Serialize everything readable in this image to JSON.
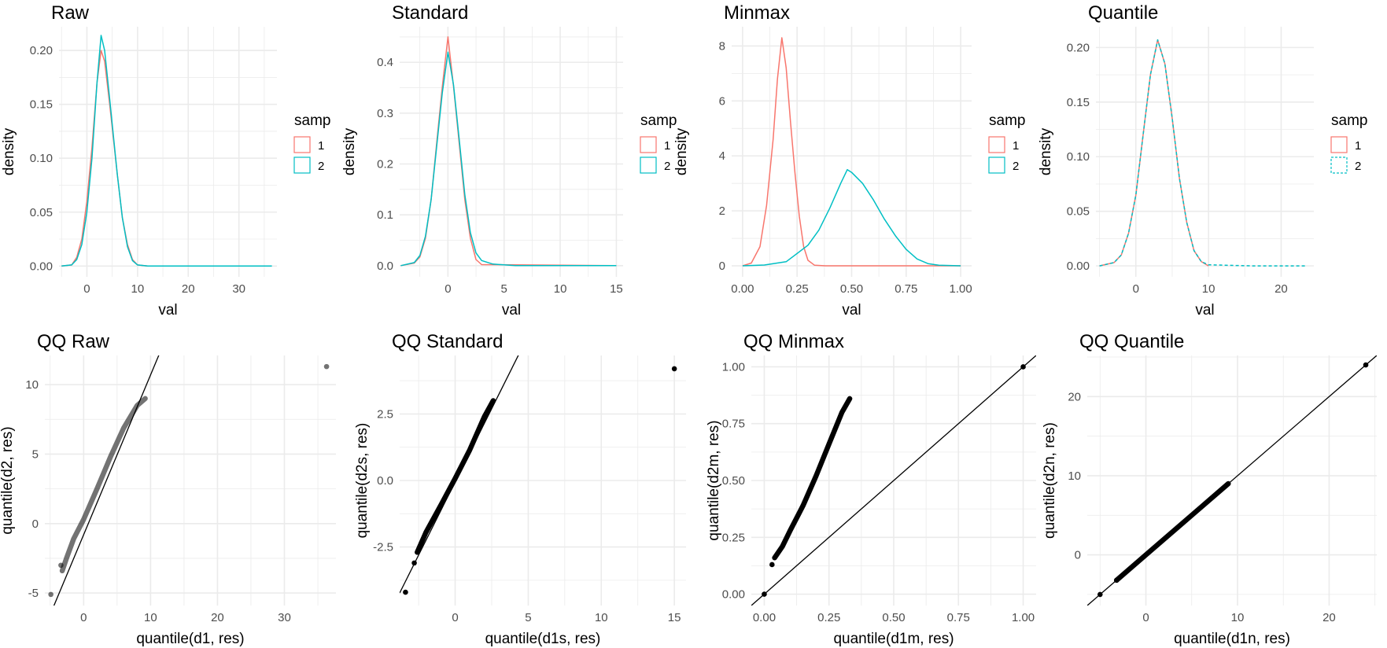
{
  "colors": {
    "samp1": "#F8766D",
    "samp2": "#00BFC4",
    "grid": "#EBEBEB",
    "text": "#4D4D4D",
    "points": "#000000"
  },
  "chart_data": [
    {
      "type": "line",
      "title": "Raw",
      "xlabel": "val",
      "ylabel": "density",
      "xlim": [
        -5.5,
        37.5
      ],
      "ylim": [
        -0.01,
        0.222
      ],
      "xticks": [
        0,
        10,
        20,
        30
      ],
      "xtick_labels": [
        "0",
        "10",
        "20",
        "30"
      ],
      "yticks": [
        0,
        0.05,
        0.1,
        0.15,
        0.2
      ],
      "ytick_labels": [
        "0.00",
        "0.05",
        "0.10",
        "0.15",
        "0.20"
      ],
      "grid": true,
      "legend": {
        "title": "samp",
        "placement": "right",
        "entries": [
          "1",
          "2"
        ]
      },
      "series": [
        {
          "name": "1",
          "color": "#F8766D",
          "dash": false,
          "x": [
            -5,
            -3,
            -2,
            -1,
            0,
            1,
            2,
            2.8,
            3.5,
            4.5,
            6,
            7,
            8,
            9,
            10,
            12,
            20,
            30,
            36
          ],
          "y": [
            0,
            0.001,
            0.008,
            0.025,
            0.06,
            0.11,
            0.17,
            0.2,
            0.19,
            0.15,
            0.085,
            0.045,
            0.02,
            0.006,
            0.001,
            0,
            0,
            0,
            0
          ]
        },
        {
          "name": "2",
          "color": "#00BFC4",
          "dash": false,
          "x": [
            -5,
            -3,
            -2,
            -1,
            0,
            1,
            2,
            2.8,
            3.5,
            4.5,
            6,
            7,
            8,
            9,
            10,
            12,
            20,
            30,
            36.5
          ],
          "y": [
            0,
            0.001,
            0.006,
            0.02,
            0.05,
            0.1,
            0.17,
            0.214,
            0.2,
            0.155,
            0.085,
            0.045,
            0.018,
            0.005,
            0.001,
            0,
            0,
            0,
            0
          ]
        }
      ]
    },
    {
      "type": "line",
      "title": "Standard",
      "xlabel": "val",
      "ylabel": "density",
      "xlim": [
        -4.3,
        15.6
      ],
      "ylim": [
        -0.022,
        0.47
      ],
      "xticks": [
        -5,
        0,
        5,
        10,
        15
      ],
      "xtick_labels": [
        "-5",
        "0",
        "5",
        "10",
        "15"
      ],
      "yticks": [
        0,
        0.1,
        0.2,
        0.3,
        0.4
      ],
      "ytick_labels": [
        "0.0",
        "0.1",
        "0.2",
        "0.3",
        "0.4"
      ],
      "grid": true,
      "legend": {
        "title": "samp",
        "placement": "right",
        "entries": [
          "1",
          "2"
        ]
      },
      "series": [
        {
          "name": "1",
          "color": "#F8766D",
          "dash": false,
          "x": [
            -4.2,
            -3,
            -2.5,
            -2,
            -1.5,
            -1,
            -0.5,
            0,
            0.5,
            1,
            1.5,
            2,
            2.5,
            3,
            15
          ],
          "y": [
            0,
            0.005,
            0.017,
            0.054,
            0.13,
            0.242,
            0.352,
            0.45,
            0.352,
            0.242,
            0.13,
            0.054,
            0.012,
            0.002,
            0
          ]
        },
        {
          "name": "2",
          "color": "#00BFC4",
          "dash": false,
          "x": [
            -4.2,
            -3,
            -2.5,
            -2,
            -1.5,
            -1,
            -0.5,
            0,
            0.5,
            1,
            1.5,
            2,
            2.5,
            3,
            4,
            6,
            15
          ],
          "y": [
            0,
            0.006,
            0.02,
            0.058,
            0.13,
            0.235,
            0.34,
            0.42,
            0.355,
            0.25,
            0.14,
            0.065,
            0.025,
            0.01,
            0.003,
            0,
            0
          ]
        }
      ]
    },
    {
      "type": "line",
      "title": "Minmax",
      "xlabel": "val",
      "ylabel": "density",
      "xlim": [
        -0.05,
        1.05
      ],
      "ylim": [
        -0.4,
        8.7
      ],
      "xticks": [
        0,
        0.25,
        0.5,
        0.75,
        1
      ],
      "xtick_labels": [
        "0.00",
        "0.25",
        "0.50",
        "0.75",
        "1.00"
      ],
      "yticks": [
        0,
        2,
        4,
        6,
        8
      ],
      "ytick_labels": [
        "0",
        "2",
        "4",
        "6",
        "8"
      ],
      "grid": true,
      "legend": {
        "title": "samp",
        "placement": "right",
        "entries": [
          "1",
          "2"
        ]
      },
      "series": [
        {
          "name": "1",
          "color": "#F8766D",
          "dash": false,
          "x": [
            0,
            0.04,
            0.08,
            0.11,
            0.14,
            0.16,
            0.18,
            0.2,
            0.22,
            0.24,
            0.26,
            0.28,
            0.3,
            0.33,
            0.38,
            1
          ],
          "y": [
            0,
            0.1,
            0.7,
            2.2,
            4.6,
            6.8,
            8.3,
            7.2,
            5.2,
            3.4,
            1.8,
            0.7,
            0.2,
            0.02,
            0,
            0
          ]
        },
        {
          "name": "2",
          "color": "#00BFC4",
          "dash": false,
          "x": [
            0,
            0.1,
            0.2,
            0.3,
            0.35,
            0.4,
            0.45,
            0.48,
            0.5,
            0.55,
            0.6,
            0.65,
            0.7,
            0.75,
            0.8,
            0.85,
            0.9,
            1
          ],
          "y": [
            0,
            0.03,
            0.15,
            0.75,
            1.3,
            2.1,
            3.0,
            3.5,
            3.4,
            3.0,
            2.4,
            1.7,
            1.1,
            0.6,
            0.25,
            0.08,
            0.02,
            0
          ]
        }
      ]
    },
    {
      "type": "line",
      "title": "Quantile",
      "xlabel": "val",
      "ylabel": "density",
      "xlim": [
        -5.5,
        24.5
      ],
      "ylim": [
        -0.01,
        0.219
      ],
      "xticks": [
        0,
        10,
        20
      ],
      "xtick_labels": [
        "0",
        "10",
        "20"
      ],
      "yticks": [
        0,
        0.05,
        0.1,
        0.15,
        0.2
      ],
      "ytick_labels": [
        "0.00",
        "0.05",
        "0.10",
        "0.15",
        "0.20"
      ],
      "grid": true,
      "legend": {
        "title": "samp",
        "placement": "right",
        "entries": [
          "1",
          "2"
        ]
      },
      "series": [
        {
          "name": "1",
          "color": "#F8766D",
          "dash": false,
          "x": [
            -5,
            -3,
            -2,
            -1,
            0,
            1,
            2,
            3,
            4,
            5,
            6,
            7,
            8,
            9,
            10
          ],
          "y": [
            0,
            0.003,
            0.01,
            0.03,
            0.065,
            0.12,
            0.175,
            0.207,
            0.185,
            0.135,
            0.08,
            0.04,
            0.014,
            0.004,
            0
          ]
        },
        {
          "name": "2",
          "color": "#00BFC4",
          "dash": true,
          "x": [
            -5,
            -3,
            -2,
            -1,
            0,
            1,
            2,
            3,
            4,
            5,
            6,
            7,
            8,
            9,
            10,
            16,
            23.5
          ],
          "y": [
            0,
            0.003,
            0.01,
            0.03,
            0.065,
            0.12,
            0.175,
            0.207,
            0.185,
            0.135,
            0.08,
            0.04,
            0.014,
            0.004,
            0.001,
            0,
            0
          ]
        }
      ]
    },
    {
      "type": "scatter",
      "title": "QQ Raw",
      "xlabel": "quantile(d1, res)",
      "ylabel": "quantile(d2, res)",
      "xlim": [
        -5.8,
        37.7
      ],
      "ylim": [
        -5.9,
        12.1
      ],
      "xticks": [
        0,
        10,
        20,
        30
      ],
      "xtick_labels": [
        "0",
        "10",
        "20",
        "30"
      ],
      "yticks": [
        -5,
        0,
        5,
        10
      ],
      "ytick_labels": [
        "-5",
        "0",
        "5",
        "10"
      ],
      "grid": true,
      "point_opacity": 0.55,
      "dense_curve": {
        "x": [
          -3.2,
          -2.5,
          -1.5,
          0,
          2,
          4,
          6,
          8,
          9.2
        ],
        "y": [
          -3.4,
          -2.4,
          -1.1,
          0.3,
          2.5,
          4.8,
          6.9,
          8.5,
          9.0
        ]
      },
      "points": [
        {
          "x": -4.9,
          "y": -5.1
        },
        {
          "x": -3.4,
          "y": -3.0
        },
        {
          "x": 36.3,
          "y": 11.3
        }
      ],
      "abline": {
        "intercept": -0.8,
        "slope": 1.15
      }
    },
    {
      "type": "scatter",
      "title": "QQ Standard",
      "xlabel": "quantile(d1s, res)",
      "ylabel": "quantile(d2s, res)",
      "xlim": [
        -3.8,
        15.8
      ],
      "ylim": [
        -4.7,
        4.7
      ],
      "xticks": [
        0,
        5,
        10,
        15
      ],
      "xtick_labels": [
        "0",
        "5",
        "10",
        "15"
      ],
      "yticks": [
        -2.5,
        0,
        2.5
      ],
      "ytick_labels": [
        "-2.5",
        "0.0",
        "2.5"
      ],
      "grid": true,
      "point_opacity": 1,
      "dense_curve": {
        "x": [
          -2.6,
          -2,
          -1,
          0,
          1,
          2,
          2.6
        ],
        "y": [
          -2.7,
          -1.95,
          -0.95,
          0.08,
          1.15,
          2.4,
          3.0
        ]
      },
      "points": [
        {
          "x": -3.4,
          "y": -4.2
        },
        {
          "x": -2.8,
          "y": -3.1
        },
        {
          "x": 15.0,
          "y": 4.2
        }
      ],
      "abline": {
        "intercept": -0.05,
        "slope": 1.1
      }
    },
    {
      "type": "scatter",
      "title": "QQ Minmax",
      "xlabel": "quantile(d1m, res)",
      "ylabel": "quantile(d2m, res)",
      "xlim": [
        -0.05,
        1.05
      ],
      "ylim": [
        -0.05,
        1.05
      ],
      "xticks": [
        0,
        0.25,
        0.5,
        0.75,
        1
      ],
      "xtick_labels": [
        "0.00",
        "0.25",
        "0.50",
        "0.75",
        "1.00"
      ],
      "yticks": [
        0,
        0.25,
        0.5,
        0.75,
        1
      ],
      "ytick_labels": [
        "0.00",
        "0.25",
        "0.50",
        "0.75",
        "1.00"
      ],
      "grid": true,
      "point_opacity": 1,
      "dense_curve": {
        "x": [
          0.04,
          0.07,
          0.1,
          0.15,
          0.2,
          0.25,
          0.3,
          0.33
        ],
        "y": [
          0.16,
          0.21,
          0.28,
          0.39,
          0.52,
          0.66,
          0.8,
          0.86
        ]
      },
      "points": [
        {
          "x": 0,
          "y": 0
        },
        {
          "x": 0.03,
          "y": 0.13
        },
        {
          "x": 1,
          "y": 1
        }
      ],
      "abline": {
        "intercept": 0,
        "slope": 1
      }
    },
    {
      "type": "scatter",
      "title": "QQ Quantile",
      "xlabel": "quantile(d1n, res)",
      "ylabel": "quantile(d2n, res)",
      "xlim": [
        -6.4,
        25.2
      ],
      "ylim": [
        -6.4,
        25.2
      ],
      "xticks": [
        0,
        10,
        20
      ],
      "xtick_labels": [
        "0",
        "10",
        "20"
      ],
      "yticks": [
        0,
        10,
        20
      ],
      "ytick_labels": [
        "0",
        "10",
        "20"
      ],
      "grid": true,
      "point_opacity": 1,
      "dense_curve": {
        "x": [
          -3.2,
          0,
          4,
          9
        ],
        "y": [
          -3.2,
          0,
          4,
          9
        ]
      },
      "points": [
        {
          "x": -5,
          "y": -5
        },
        {
          "x": -3.2,
          "y": -3.2
        },
        {
          "x": 24,
          "y": 24
        }
      ],
      "abline": {
        "intercept": 0,
        "slope": 1
      }
    }
  ]
}
